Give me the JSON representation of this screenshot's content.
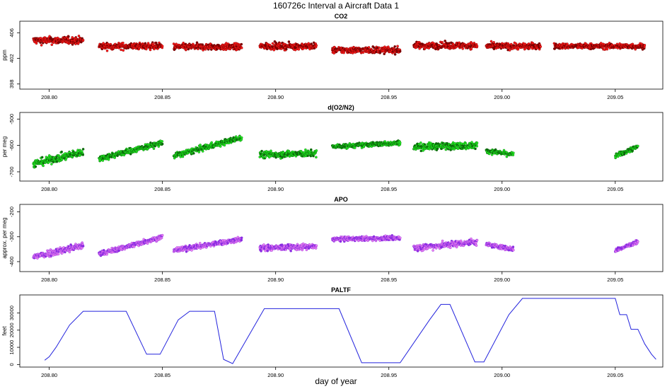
{
  "title": "160726c   Interval a Aircraft Data 1",
  "xlabel": "day of year",
  "colors": {
    "co2_edge": "#7a0000",
    "co2_fill": "#ff1a1a",
    "o2_edge": "#0b6b0b",
    "o2_fill": "#22ee22",
    "apo_edge": "#8a2be2",
    "apo_fill": "#ee82ee",
    "paltf": "#2323dd"
  },
  "chart_data": [
    {
      "type": "scatter",
      "title": "CO2",
      "ylabel": "ppm",
      "xlim": [
        208.787,
        209.071
      ],
      "ylim": [
        397.2,
        407.8
      ],
      "xticks": [
        "208.80",
        "208.85",
        "208.90",
        "208.95",
        "209.00",
        "209.05"
      ],
      "yticks": [
        "398",
        "402",
        "406"
      ],
      "ytick_values": [
        398,
        402,
        406
      ],
      "segments": [
        {
          "x": [
            208.793,
            208.815
          ],
          "level": 404.8,
          "spread": 0.8
        },
        {
          "x": [
            208.822,
            208.85
          ],
          "level": 403.9,
          "spread": 0.7
        },
        {
          "x": [
            208.855,
            208.885
          ],
          "level": 403.8,
          "spread": 0.7
        },
        {
          "x": [
            208.893,
            208.918
          ],
          "level": 403.9,
          "spread": 0.7
        },
        {
          "x": [
            208.925,
            208.955
          ],
          "level": 403.3,
          "spread": 0.7
        },
        {
          "x": [
            208.961,
            208.989
          ],
          "level": 404.0,
          "spread": 0.7
        },
        {
          "x": [
            208.993,
            209.017
          ],
          "level": 403.9,
          "spread": 0.7
        },
        {
          "x": [
            209.023,
            209.063
          ],
          "level": 403.9,
          "spread": 0.6
        }
      ]
    },
    {
      "type": "scatter",
      "title": "d(O2/N2)",
      "ylabel": "per meg",
      "xlim": [
        208.787,
        209.071
      ],
      "ylim": [
        -735,
        -475
      ],
      "xticks": [
        "208.80",
        "208.85",
        "208.90",
        "208.95",
        "209.00",
        "209.05"
      ],
      "yticks": [
        "-700",
        "-600",
        "-500"
      ],
      "ytick_values": [
        -700,
        -600,
        -500
      ],
      "segments": [
        {
          "x": [
            208.793,
            208.815
          ],
          "from": -670,
          "to": -625,
          "spread": 20
        },
        {
          "x": [
            208.822,
            208.85
          ],
          "from": -650,
          "to": -590,
          "spread": 15
        },
        {
          "x": [
            208.855,
            208.885
          ],
          "from": -640,
          "to": -570,
          "spread": 15
        },
        {
          "x": [
            208.893,
            208.918
          ],
          "from": -635,
          "to": -630,
          "spread": 18
        },
        {
          "x": [
            208.925,
            208.955
          ],
          "from": -605,
          "to": -590,
          "spread": 12
        },
        {
          "x": [
            208.961,
            208.989
          ],
          "from": -605,
          "to": -600,
          "spread": 18
        },
        {
          "x": [
            208.993,
            209.005
          ],
          "from": -620,
          "to": -635,
          "spread": 12
        },
        {
          "x": [
            209.05,
            209.06
          ],
          "from": -640,
          "to": -605,
          "spread": 12
        }
      ]
    },
    {
      "type": "scatter",
      "title": "APO",
      "ylabel": "approx. per meg",
      "xlim": [
        208.787,
        209.071
      ],
      "ylim": [
        -440,
        -170
      ],
      "xticks": [
        "208.80",
        "208.85",
        "208.90",
        "208.95",
        "209.00",
        "209.05"
      ],
      "yticks": [
        "-400",
        "-300",
        "-200"
      ],
      "ytick_values": [
        -400,
        -300,
        -200
      ],
      "segments": [
        {
          "x": [
            208.793,
            208.815
          ],
          "from": -380,
          "to": -335,
          "spread": 20
        },
        {
          "x": [
            208.822,
            208.85
          ],
          "from": -370,
          "to": -300,
          "spread": 14
        },
        {
          "x": [
            208.855,
            208.885
          ],
          "from": -355,
          "to": -310,
          "spread": 14
        },
        {
          "x": [
            208.893,
            208.918
          ],
          "from": -345,
          "to": -340,
          "spread": 16
        },
        {
          "x": [
            208.925,
            208.955
          ],
          "from": -310,
          "to": -305,
          "spread": 12
        },
        {
          "x": [
            208.961,
            208.989
          ],
          "from": -345,
          "to": -320,
          "spread": 18
        },
        {
          "x": [
            208.993,
            209.005
          ],
          "from": -330,
          "to": -350,
          "spread": 12
        },
        {
          "x": [
            209.05,
            209.06
          ],
          "from": -355,
          "to": -320,
          "spread": 12
        }
      ]
    },
    {
      "type": "line",
      "title": "PALTF",
      "ylabel": "feet",
      "xlim": [
        208.787,
        209.071
      ],
      "ylim": [
        -1500,
        40500
      ],
      "xticks": [
        "208.80",
        "208.85",
        "208.90",
        "208.95",
        "209.00",
        "209.05"
      ],
      "yticks": [
        "0",
        "10000",
        "20000",
        "30000"
      ],
      "ytick_values": [
        0,
        10000,
        20000,
        30000
      ],
      "x": [
        208.798,
        208.8,
        208.803,
        208.809,
        208.815,
        208.834,
        208.843,
        208.849,
        208.857,
        208.862,
        208.873,
        208.877,
        208.881,
        208.895,
        208.928,
        208.938,
        208.955,
        208.968,
        208.973,
        208.977,
        208.988,
        208.992,
        209.003,
        209.009,
        209.05,
        209.052,
        209.055,
        209.057,
        209.06,
        209.063,
        209.066,
        209.068
      ],
      "y": [
        2500,
        4500,
        10000,
        23000,
        31000,
        31000,
        6000,
        6000,
        26000,
        31000,
        31000,
        3000,
        500,
        32500,
        32500,
        1000,
        1000,
        26000,
        35000,
        35000,
        1500,
        1500,
        29000,
        38500,
        38500,
        29000,
        29000,
        20500,
        20500,
        12000,
        6000,
        3000
      ]
    }
  ]
}
